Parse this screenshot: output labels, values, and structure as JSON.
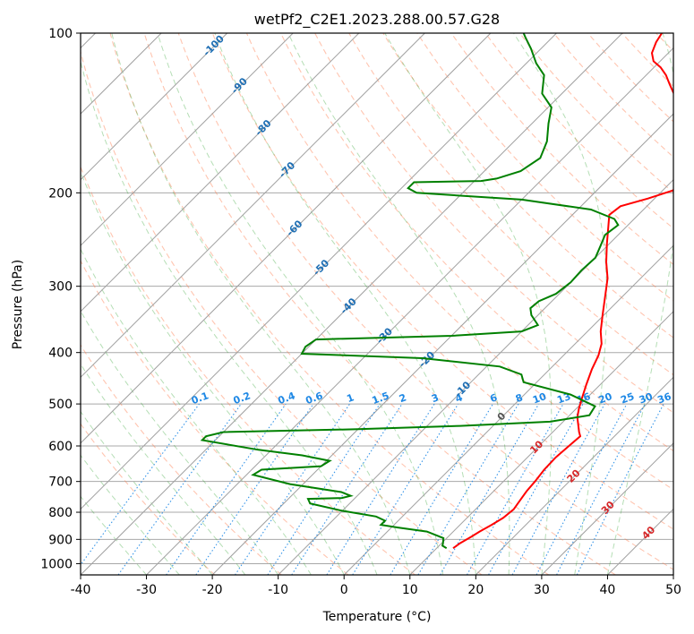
{
  "chart_data": {
    "type": "skew-t",
    "title": "wetPf2_C2E1.2023.288.00.57.G28",
    "xlabel": "Temperature (°C)",
    "ylabel": "Pressure (hPa)",
    "xlim": [
      -40,
      50
    ],
    "ylim": [
      1050,
      100
    ],
    "y_scale": "log",
    "grid": true,
    "x_ticks": [
      "-40",
      "-30",
      "-20",
      "-10",
      "0",
      "10",
      "20",
      "30",
      "40",
      "50"
    ],
    "y_ticks": [
      "100",
      "200",
      "300",
      "400",
      "500",
      "600",
      "700",
      "800",
      "900",
      "1000"
    ],
    "colors": {
      "temperature": "#ff0000",
      "dewpoint": "#008000",
      "isotherm": "#a0a0a0",
      "dry_adiabat": "#ff7f50",
      "moist_adiabat": "#2ca02c",
      "mixing_ratio": "#1e88e5"
    },
    "series": [
      {
        "role": "temperature",
        "points": [
          [
            12.5,
            935
          ],
          [
            12.8,
            915
          ],
          [
            13.5,
            890
          ],
          [
            14,
            870
          ],
          [
            14.8,
            845
          ],
          [
            15.5,
            820
          ],
          [
            15.8,
            790
          ],
          [
            15.4,
            760
          ],
          [
            15,
            730
          ],
          [
            14.8,
            700
          ],
          [
            14.4,
            665
          ],
          [
            14.3,
            630
          ],
          [
            14.6,
            595
          ],
          [
            14.8,
            575
          ],
          [
            14,
            565
          ],
          [
            12.6,
            545
          ],
          [
            11.5,
            530
          ],
          [
            10.4,
            510
          ],
          [
            9.4,
            490
          ],
          [
            7.9,
            460
          ],
          [
            6.4,
            430
          ],
          [
            5.3,
            405
          ],
          [
            4,
            385
          ],
          [
            2,
            365
          ],
          [
            -0.2,
            340
          ],
          [
            -2.5,
            315
          ],
          [
            -5,
            290
          ],
          [
            -7.7,
            270
          ],
          [
            -10.3,
            250
          ],
          [
            -12.7,
            232
          ],
          [
            -14.4,
            220
          ],
          [
            -14,
            212
          ],
          [
            -11,
            205
          ],
          [
            -8.5,
            198
          ],
          [
            -7.9,
            192
          ],
          [
            -8.8,
            183
          ],
          [
            -11.3,
            172
          ],
          [
            -13.5,
            160
          ],
          [
            -14.8,
            150
          ],
          [
            -17.3,
            142
          ],
          [
            -20.5,
            136
          ],
          [
            -23,
            130
          ],
          [
            -25,
            125
          ],
          [
            -27,
            120
          ],
          [
            -29,
            116
          ],
          [
            -31,
            113
          ],
          [
            -32.5,
            109
          ],
          [
            -33.5,
            104
          ],
          [
            -34,
            100
          ]
        ]
      },
      {
        "role": "dewpoint",
        "points": [
          [
            11.5,
            935
          ],
          [
            10.5,
            925
          ],
          [
            10.2,
            915
          ],
          [
            9.5,
            895
          ],
          [
            6,
            870
          ],
          [
            1,
            855
          ],
          [
            -2,
            845
          ],
          [
            -2,
            830
          ],
          [
            -4,
            815
          ],
          [
            -10,
            795
          ],
          [
            -16,
            770
          ],
          [
            -17,
            755
          ],
          [
            -12,
            752
          ],
          [
            -11,
            745
          ],
          [
            -13,
            733
          ],
          [
            -22,
            708
          ],
          [
            -29,
            680
          ],
          [
            -28.5,
            665
          ],
          [
            -20,
            655
          ],
          [
            -19.5,
            640
          ],
          [
            -24.5,
            625
          ],
          [
            -32,
            610
          ],
          [
            -42,
            585
          ],
          [
            -42,
            575
          ],
          [
            -40,
            565
          ],
          [
            -20,
            558
          ],
          [
            -5,
            550
          ],
          [
            8,
            540
          ],
          [
            13,
            525
          ],
          [
            12.5,
            505
          ],
          [
            7,
            480
          ],
          [
            -2,
            455
          ],
          [
            -3.5,
            440
          ],
          [
            -8,
            425
          ],
          [
            -21,
            410
          ],
          [
            -40,
            402
          ],
          [
            -40.5,
            390
          ],
          [
            -40,
            378
          ],
          [
            -20,
            372
          ],
          [
            -10,
            365
          ],
          [
            -8.5,
            355
          ],
          [
            -11,
            340
          ],
          [
            -12.2,
            330
          ],
          [
            -12,
            320
          ],
          [
            -10.5,
            310
          ],
          [
            -10,
            295
          ],
          [
            -10.2,
            280
          ],
          [
            -10,
            265
          ],
          [
            -11,
            252
          ],
          [
            -12,
            240
          ],
          [
            -11.5,
            230
          ],
          [
            -13,
            224
          ],
          [
            -18,
            215
          ],
          [
            -30,
            206
          ],
          [
            -47,
            200
          ],
          [
            -49,
            196
          ],
          [
            -49,
            191
          ],
          [
            -39,
            190
          ],
          [
            -37,
            188
          ],
          [
            -34.5,
            182
          ],
          [
            -33.5,
            172
          ],
          [
            -35,
            160
          ],
          [
            -37.5,
            148
          ],
          [
            -39.5,
            138
          ],
          [
            -43,
            130
          ],
          [
            -45.5,
            120
          ],
          [
            -48.5,
            114
          ],
          [
            -51.5,
            107
          ],
          [
            -54,
            102
          ],
          [
            -55,
            100
          ]
        ]
      }
    ],
    "isotherm_labels": [
      "-100",
      "-90",
      "-80",
      "-70",
      "-60",
      "-50",
      "-40",
      "-30",
      "-20",
      "-10",
      "0",
      "10",
      "20",
      "30",
      "40"
    ],
    "mixing_ratio_labels": [
      "0.1",
      "0.2",
      "0.4",
      "0.6",
      "1",
      "1.5",
      "2",
      "3",
      "4",
      "6",
      "8",
      "10",
      "13",
      "16",
      "20",
      "25",
      "30",
      "36"
    ]
  }
}
